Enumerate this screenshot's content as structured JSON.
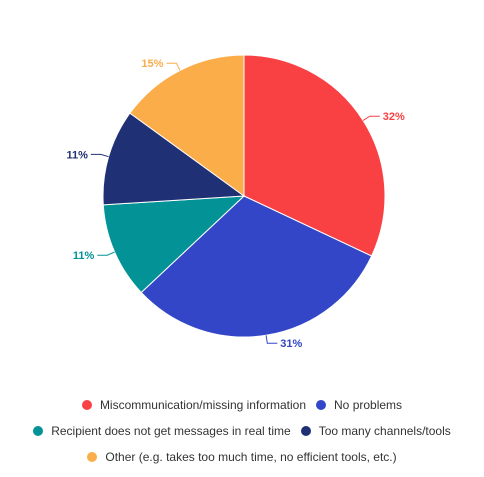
{
  "chart_data": {
    "type": "pie",
    "title": "",
    "start_angle_deg": 0,
    "direction": "clockwise",
    "legend_position": "bottom",
    "series": [
      {
        "name": "",
        "slices": [
          {
            "label": "Miscommunication/missing information",
            "value": 32,
            "display": "32%",
            "color": "#f94144"
          },
          {
            "label": "No problems",
            "value": 31,
            "display": "31%",
            "color": "#3346c8"
          },
          {
            "label": "Recipient does not get messages in real time",
            "value": 11,
            "display": "11%",
            "color": "#039396"
          },
          {
            "label": "Too many channels/tools",
            "value": 11,
            "display": "11%",
            "color": "#1f3174"
          },
          {
            "label": "Other (e.g. takes too much time, no efficient tools, etc.)",
            "value": 15,
            "display": "15%",
            "color": "#fbad4a"
          }
        ]
      }
    ],
    "legend_rows": [
      [
        0,
        1
      ],
      [
        2,
        3
      ],
      [
        4
      ]
    ]
  }
}
